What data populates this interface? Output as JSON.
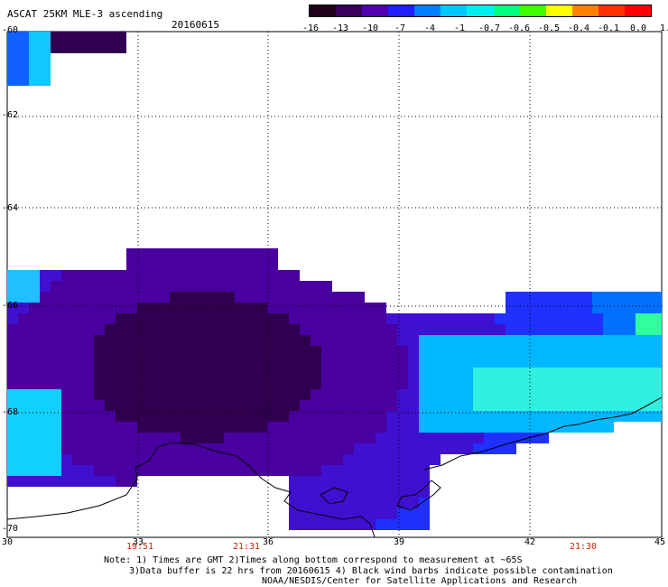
{
  "header": {
    "title": "ASCAT 25KM MLE-3 ascending",
    "date": "20160615"
  },
  "colorbar": {
    "labels": [
      "-16",
      "-13",
      "-10",
      "-7",
      "-4",
      "-1",
      "-0.7",
      "-0.6",
      "-0.5",
      "-0.4",
      "-0.1",
      "0.0",
      "1.0"
    ],
    "colors": [
      "#200018",
      "#3a0060",
      "#5000b0",
      "#2020ff",
      "#0080ff",
      "#00c8ff",
      "#00f0f0",
      "#00ff80",
      "#40ff00",
      "#ffff00",
      "#ff8000",
      "#ff3000",
      "#ff0000"
    ]
  },
  "axes": {
    "lat_labels": [
      "-60",
      "-62",
      "-64",
      "-66",
      "-68",
      "-70"
    ],
    "lon_labels": [
      "30",
      "33",
      "36",
      "39",
      "42",
      "45"
    ],
    "times": [
      "19:51",
      "21:31",
      "21:30"
    ]
  },
  "notes": {
    "line1": "Note: 1) Times are GMT 2)Times along bottom correspond to measurement at ~65S",
    "line2": "3)Data buffer is 22 hrs from 20160615 4) Black wind barbs indicate possible contamination",
    "line3": "NOAA/NESDIS/Center for Satellite Applications and Research"
  }
}
